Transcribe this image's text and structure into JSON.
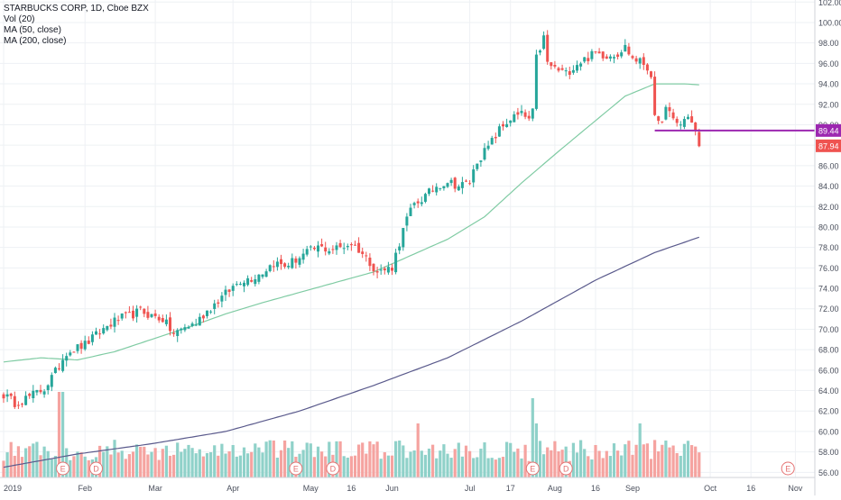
{
  "legend": {
    "title": "STARBUCKS CORP, 1D, Cboe BZX",
    "vol": "Vol (20)",
    "ma50": "MA (50, close)",
    "ma200": "MA (200, close)"
  },
  "colors": {
    "up": "#26a69a",
    "down": "#ef5350",
    "vol_up": "#8fd1c9",
    "vol_down": "#f5a3a0",
    "ma50": "#7fcba3",
    "ma200": "#5a5a8c",
    "hline": "#9c27b0",
    "grid": "#eef1f4",
    "axis_text": "#4a4f5c"
  },
  "chart_data": {
    "type": "candlestick",
    "y_axis": {
      "min": 55.5,
      "max": 102.2,
      "ticks": [
        "56.00",
        "58.00",
        "60.00",
        "62.00",
        "64.00",
        "66.00",
        "68.00",
        "70.00",
        "72.00",
        "74.00",
        "76.00",
        "78.00",
        "80.00",
        "82.00",
        "84.00",
        "86.00",
        "88.00",
        "90.00",
        "92.00",
        "94.00",
        "96.00",
        "98.00",
        "100.00",
        "102.00"
      ]
    },
    "x_axis": {
      "labels": [
        {
          "text": "2019",
          "day": 0
        },
        {
          "text": "Feb",
          "day": 22
        },
        {
          "text": "Mar",
          "day": 41
        },
        {
          "text": "Apr",
          "day": 62
        },
        {
          "text": "May",
          "day": 83
        },
        {
          "text": "16",
          "day": 94
        },
        {
          "text": "Jun",
          "day": 105
        },
        {
          "text": "Jul",
          "day": 126
        },
        {
          "text": "17",
          "day": 137
        },
        {
          "text": "Aug",
          "day": 149
        },
        {
          "text": "16",
          "day": 160
        },
        {
          "text": "Sep",
          "day": 170
        },
        {
          "text": "Oct",
          "day": 191
        },
        {
          "text": "16",
          "day": 202
        },
        {
          "text": "Nov",
          "day": 214
        }
      ]
    },
    "price_labels": [
      {
        "value": 89.44,
        "text": "89.44",
        "kind": "level"
      },
      {
        "value": 87.94,
        "text": "87.94",
        "kind": "last"
      }
    ],
    "hline": {
      "value": 89.44,
      "from_day": 176
    },
    "events": [
      {
        "label": "E",
        "day": 16
      },
      {
        "label": "D",
        "day": 25
      },
      {
        "label": "E",
        "day": 79
      },
      {
        "label": "D",
        "day": 89
      },
      {
        "label": "E",
        "day": 143
      },
      {
        "label": "D",
        "day": 152
      },
      {
        "label": "E",
        "day": 212
      }
    ],
    "waypoints": [
      [
        0,
        63.6
      ],
      [
        3,
        62.8
      ],
      [
        7,
        63.4
      ],
      [
        11,
        64.2
      ],
      [
        14,
        65.8
      ],
      [
        17,
        67.8
      ],
      [
        20,
        68.2
      ],
      [
        22,
        68.5
      ],
      [
        25,
        69.4
      ],
      [
        28,
        70.3
      ],
      [
        31,
        71.0
      ],
      [
        34,
        71.3
      ],
      [
        37,
        71.8
      ],
      [
        40,
        71.3
      ],
      [
        43,
        71.0
      ],
      [
        46,
        69.5
      ],
      [
        49,
        70.2
      ],
      [
        52,
        70.6
      ],
      [
        55,
        71.8
      ],
      [
        58,
        72.8
      ],
      [
        61,
        73.8
      ],
      [
        64,
        74.8
      ],
      [
        67,
        75.0
      ],
      [
        70,
        75.6
      ],
      [
        73,
        76.5
      ],
      [
        76,
        76.2
      ],
      [
        79,
        76.8
      ],
      [
        82,
        77.5
      ],
      [
        85,
        78.0
      ],
      [
        88,
        77.8
      ],
      [
        91,
        78.0
      ],
      [
        94,
        78.4
      ],
      [
        96,
        77.8
      ],
      [
        99,
        76.6
      ],
      [
        101,
        75.6
      ],
      [
        103,
        75.8
      ],
      [
        105,
        76.1
      ],
      [
        107,
        78.5
      ],
      [
        109,
        80.8
      ],
      [
        111,
        82.2
      ],
      [
        114,
        83.0
      ],
      [
        117,
        84.0
      ],
      [
        120,
        84.5
      ],
      [
        123,
        84.0
      ],
      [
        126,
        84.4
      ],
      [
        128,
        86.5
      ],
      [
        131,
        87.8
      ],
      [
        134,
        89.5
      ],
      [
        137,
        90.6
      ],
      [
        140,
        91.0
      ],
      [
        142,
        90.5
      ],
      [
        143,
        91.2
      ],
      [
        144,
        96.5
      ],
      [
        146,
        98.5
      ],
      [
        147,
        96.0
      ],
      [
        149,
        95.5
      ],
      [
        152,
        95.0
      ],
      [
        155,
        96.0
      ],
      [
        157,
        96.4
      ],
      [
        160,
        97.0
      ],
      [
        163,
        96.8
      ],
      [
        166,
        97.0
      ],
      [
        168,
        97.6
      ],
      [
        170,
        96.5
      ],
      [
        173,
        96.0
      ],
      [
        175,
        95.0
      ],
      [
        176,
        90.5
      ],
      [
        177,
        90.0
      ],
      [
        179,
        91.5
      ],
      [
        181,
        90.5
      ],
      [
        183,
        90.0
      ],
      [
        185,
        91.0
      ],
      [
        187,
        89.3
      ],
      [
        188,
        87.9
      ]
    ],
    "ma50_waypoints": [
      [
        0,
        66.8
      ],
      [
        10,
        67.2
      ],
      [
        20,
        67.0
      ],
      [
        30,
        67.8
      ],
      [
        40,
        69.0
      ],
      [
        50,
        70.2
      ],
      [
        60,
        71.5
      ],
      [
        70,
        72.6
      ],
      [
        80,
        73.6
      ],
      [
        90,
        74.6
      ],
      [
        100,
        75.6
      ],
      [
        110,
        77.2
      ],
      [
        120,
        78.8
      ],
      [
        130,
        81.0
      ],
      [
        140,
        84.3
      ],
      [
        150,
        87.4
      ],
      [
        160,
        90.4
      ],
      [
        168,
        92.8
      ],
      [
        176,
        94.0
      ],
      [
        184,
        94.0
      ],
      [
        188,
        93.9
      ]
    ],
    "ma200_waypoints": [
      [
        0,
        56.5
      ],
      [
        20,
        57.8
      ],
      [
        40,
        58.8
      ],
      [
        60,
        60.0
      ],
      [
        80,
        62.0
      ],
      [
        100,
        64.5
      ],
      [
        120,
        67.2
      ],
      [
        140,
        70.8
      ],
      [
        160,
        74.8
      ],
      [
        176,
        77.5
      ],
      [
        188,
        79.0
      ]
    ]
  }
}
